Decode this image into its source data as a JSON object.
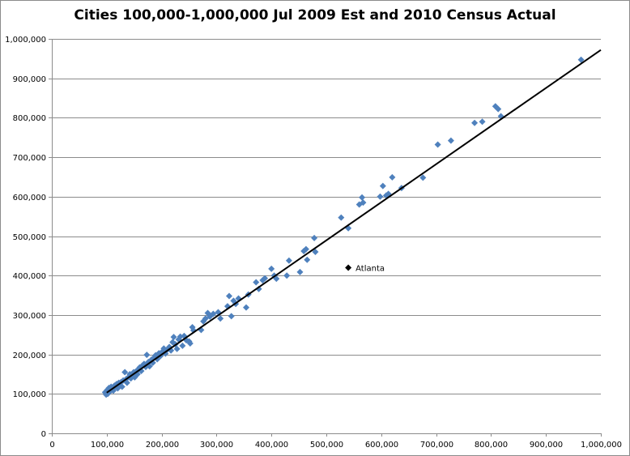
{
  "chart_data": {
    "type": "scatter",
    "title": "Cities 100,000-1,000,000 Jul 2009 Est and 2010 Census Actual",
    "xlabel": "",
    "ylabel": "",
    "xlim": [
      0,
      1000000
    ],
    "ylim": [
      0,
      1000000
    ],
    "x_ticks": [
      0,
      100000,
      200000,
      300000,
      400000,
      500000,
      600000,
      700000,
      800000,
      900000,
      1000000
    ],
    "y_ticks": [
      0,
      100000,
      200000,
      300000,
      400000,
      500000,
      600000,
      700000,
      800000,
      900000,
      1000000
    ],
    "x_tick_labels": [
      "0",
      "100,000",
      "200,000",
      "300,000",
      "400,000",
      "500,000",
      "600,000",
      "700,000",
      "800,000",
      "900,000",
      "1,000,000"
    ],
    "y_tick_labels": [
      "0",
      "100,000",
      "200,000",
      "300,000",
      "400,000",
      "500,000",
      "600,000",
      "700,000",
      "800,000",
      "900,000",
      "1,000,000"
    ],
    "grid": "horizontal",
    "colors": {
      "points": "#4f81bd",
      "highlight": "#000000",
      "trendline": "#000000",
      "gridline": "#8c8c8c"
    },
    "trendline": {
      "x": [
        100000,
        1000000
      ],
      "y": [
        103000,
        972000
      ]
    },
    "points": [
      [
        97000,
        104000
      ],
      [
        99000,
        98000
      ],
      [
        101000,
        110000
      ],
      [
        102000,
        100000
      ],
      [
        104000,
        115000
      ],
      [
        106000,
        106000
      ],
      [
        108000,
        118000
      ],
      [
        110000,
        112000
      ],
      [
        112000,
        108000
      ],
      [
        114000,
        121000
      ],
      [
        116000,
        119000
      ],
      [
        118000,
        125000
      ],
      [
        120000,
        114000
      ],
      [
        122000,
        128000
      ],
      [
        124000,
        123000
      ],
      [
        126000,
        130000
      ],
      [
        128000,
        118000
      ],
      [
        130000,
        134000
      ],
      [
        133000,
        155000
      ],
      [
        135000,
        137000
      ],
      [
        137000,
        128000
      ],
      [
        140000,
        143000
      ],
      [
        142000,
        150000
      ],
      [
        144000,
        139000
      ],
      [
        146000,
        147000
      ],
      [
        149000,
        155000
      ],
      [
        151000,
        142000
      ],
      [
        154000,
        158000
      ],
      [
        156000,
        150000
      ],
      [
        158000,
        162000
      ],
      [
        160000,
        167000
      ],
      [
        163000,
        158000
      ],
      [
        165000,
        172000
      ],
      [
        168000,
        176000
      ],
      [
        171000,
        168000
      ],
      [
        173000,
        199000
      ],
      [
        176000,
        181000
      ],
      [
        178000,
        170000
      ],
      [
        181000,
        186000
      ],
      [
        184000,
        179000
      ],
      [
        186000,
        192000
      ],
      [
        189000,
        198000
      ],
      [
        192000,
        188000
      ],
      [
        195000,
        203000
      ],
      [
        198000,
        196000
      ],
      [
        201000,
        207000
      ],
      [
        204000,
        215000
      ],
      [
        207000,
        202000
      ],
      [
        210000,
        212000
      ],
      [
        214000,
        219000
      ],
      [
        217000,
        210000
      ],
      [
        220000,
        231000
      ],
      [
        222000,
        244000
      ],
      [
        225000,
        226000
      ],
      [
        228000,
        214000
      ],
      [
        231000,
        238000
      ],
      [
        234000,
        245000
      ],
      [
        238000,
        222000
      ],
      [
        241000,
        247000
      ],
      [
        245000,
        236000
      ],
      [
        250000,
        233000
      ],
      [
        252000,
        228000
      ],
      [
        256000,
        269000
      ],
      [
        258000,
        261000
      ],
      [
        272000,
        262000
      ],
      [
        276000,
        284000
      ],
      [
        280000,
        291000
      ],
      [
        284000,
        305000
      ],
      [
        288000,
        296000
      ],
      [
        294000,
        303000
      ],
      [
        303000,
        307000
      ],
      [
        307000,
        291000
      ],
      [
        320000,
        322000
      ],
      [
        323000,
        348000
      ],
      [
        327000,
        297000
      ],
      [
        331000,
        336000
      ],
      [
        335000,
        328000
      ],
      [
        340000,
        342000
      ],
      [
        354000,
        319000
      ],
      [
        358000,
        352000
      ],
      [
        372000,
        383000
      ],
      [
        377000,
        366000
      ],
      [
        384000,
        388000
      ],
      [
        388000,
        393000
      ],
      [
        400000,
        417000
      ],
      [
        405000,
        400000
      ],
      [
        409000,
        392000
      ],
      [
        428000,
        400000
      ],
      [
        432000,
        438000
      ],
      [
        452000,
        409000
      ],
      [
        459000,
        462000
      ],
      [
        463000,
        467000
      ],
      [
        465000,
        440000
      ],
      [
        478000,
        495000
      ],
      [
        480000,
        460000
      ],
      [
        527000,
        547000
      ],
      [
        540000,
        520000
      ],
      [
        560000,
        580000
      ],
      [
        565000,
        598000
      ],
      [
        567000,
        585000
      ],
      [
        598000,
        600000
      ],
      [
        603000,
        627000
      ],
      [
        609000,
        603000
      ],
      [
        613000,
        607000
      ],
      [
        620000,
        649000
      ],
      [
        637000,
        622000
      ],
      [
        676000,
        648000
      ],
      [
        703000,
        732000
      ],
      [
        727000,
        742000
      ],
      [
        770000,
        787000
      ],
      [
        784000,
        790000
      ],
      [
        808000,
        829000
      ],
      [
        813000,
        822000
      ],
      [
        818000,
        804000
      ],
      [
        964000,
        947000
      ]
    ],
    "highlight_points": [
      {
        "x": 540000,
        "y": 420000,
        "label": "Atlanta"
      }
    ]
  }
}
